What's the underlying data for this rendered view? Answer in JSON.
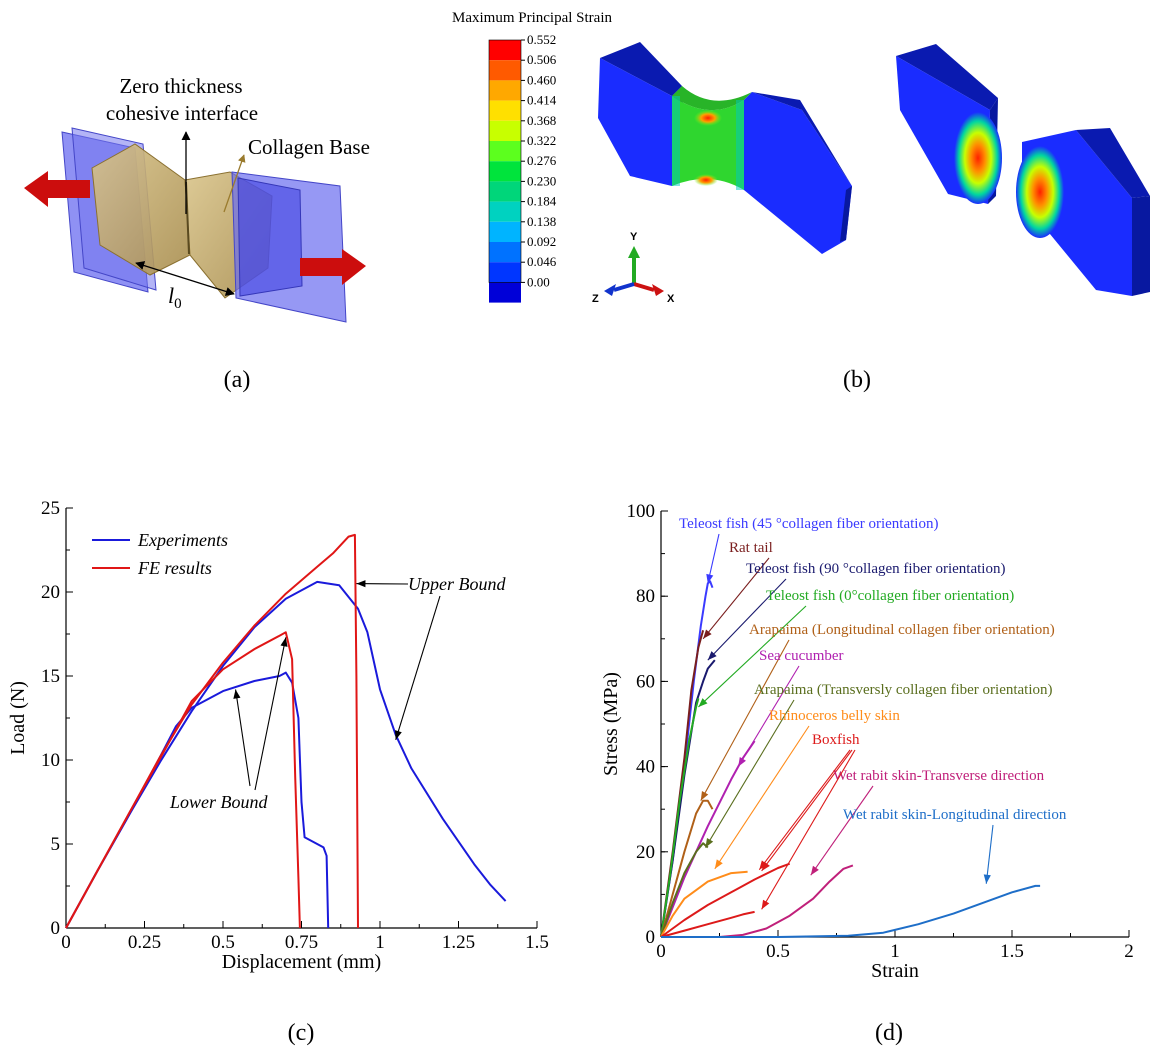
{
  "panel_a": {
    "label_interface_line1": "Zero thickness",
    "label_interface_line2": "cohesive interface",
    "label_collagen": "Collagen Base",
    "label_l0": "l",
    "label_l0_sub": "0",
    "caption": "(a)"
  },
  "panel_b": {
    "legend_title": "Maximum Principal Strain",
    "legend_values": [
      "0.552",
      "0.506",
      "0.460",
      "0.414",
      "0.368",
      "0.322",
      "0.276",
      "0.230",
      "0.184",
      "0.138",
      "0.092",
      "0.046",
      "0.00"
    ],
    "legend_colors": [
      "#ff0000",
      "#ff5a00",
      "#ffa800",
      "#ffe000",
      "#c8ff00",
      "#5cff1e",
      "#00e43c",
      "#00d67a",
      "#00d2c0",
      "#00b4ff",
      "#0072ff",
      "#0036ff",
      "#0000d8"
    ],
    "axis_y": "Y",
    "axis_z": "Z",
    "axis_x": "X",
    "caption": "(b)"
  },
  "chart_data": [
    {
      "type": "line",
      "panel": "c",
      "xlabel": "Displacement (mm)",
      "ylabel": "Load (N)",
      "xlim": [
        0,
        1.5
      ],
      "ylim": [
        0,
        25
      ],
      "xticks": [
        "0",
        "0.25",
        "0.5",
        "0.75",
        "1",
        "1.25",
        "1.5"
      ],
      "yticks": [
        "0",
        "5",
        "10",
        "15",
        "20",
        "25"
      ],
      "legend": "top-left",
      "series": [
        {
          "name": "Experiments",
          "color": "#1a1adb",
          "points": [
            [
              0,
              0
            ],
            [
              0.1,
              3.4
            ],
            [
              0.2,
              6.7
            ],
            [
              0.3,
              9.9
            ],
            [
              0.4,
              12.9
            ],
            [
              0.5,
              15.6
            ],
            [
              0.6,
              17.9
            ],
            [
              0.7,
              19.6
            ],
            [
              0.8,
              20.6
            ],
            [
              0.87,
              20.4
            ],
            [
              0.93,
              19.0
            ],
            [
              0.96,
              17.6
            ],
            [
              1.0,
              14.2
            ],
            [
              1.05,
              11.5
            ],
            [
              1.1,
              9.5
            ],
            [
              1.2,
              6.5
            ],
            [
              1.3,
              3.8
            ],
            [
              1.35,
              2.6
            ],
            [
              1.4,
              1.6
            ]
          ]
        },
        {
          "name": "Experiments",
          "color": "#1a1adb",
          "points": [
            [
              0,
              0
            ],
            [
              0.1,
              3.4
            ],
            [
              0.2,
              6.7
            ],
            [
              0.3,
              10.2
            ],
            [
              0.35,
              12.0
            ],
            [
              0.4,
              13.1
            ],
            [
              0.5,
              14.1
            ],
            [
              0.6,
              14.7
            ],
            [
              0.68,
              15.0
            ],
            [
              0.7,
              15.2
            ],
            [
              0.72,
              14.6
            ],
            [
              0.74,
              12.5
            ],
            [
              0.75,
              7.5
            ],
            [
              0.76,
              5.4
            ],
            [
              0.78,
              5.2
            ],
            [
              0.8,
              5.0
            ],
            [
              0.82,
              4.8
            ],
            [
              0.83,
              4.3
            ],
            [
              0.835,
              0
            ]
          ]
        },
        {
          "name": "FE results",
          "color": "#e01616",
          "points": [
            [
              0,
              0
            ],
            [
              0.1,
              3.4
            ],
            [
              0.2,
              6.8
            ],
            [
              0.3,
              10.2
            ],
            [
              0.4,
              13.3
            ],
            [
              0.5,
              15.8
            ],
            [
              0.6,
              18.0
            ],
            [
              0.7,
              19.9
            ],
            [
              0.8,
              21.5
            ],
            [
              0.85,
              22.3
            ],
            [
              0.9,
              23.3
            ],
            [
              0.92,
              23.4
            ],
            [
              0.925,
              15.0
            ],
            [
              0.93,
              0
            ]
          ]
        },
        {
          "name": "FE results",
          "color": "#e01616",
          "points": [
            [
              0,
              0
            ],
            [
              0.1,
              3.4
            ],
            [
              0.2,
              6.8
            ],
            [
              0.3,
              10.1
            ],
            [
              0.35,
              11.8
            ],
            [
              0.4,
              13.5
            ],
            [
              0.5,
              15.4
            ],
            [
              0.6,
              16.6
            ],
            [
              0.68,
              17.4
            ],
            [
              0.7,
              17.6
            ],
            [
              0.72,
              16.0
            ],
            [
              0.73,
              9.0
            ],
            [
              0.74,
              3.0
            ],
            [
              0.745,
              0
            ]
          ]
        }
      ],
      "annotations": [
        "Upper Bound",
        "Lower Bound"
      ],
      "caption": "(c)"
    },
    {
      "type": "line",
      "panel": "d",
      "xlabel": "Strain",
      "ylabel": "Stress (MPa)",
      "xlim": [
        0,
        2
      ],
      "ylim": [
        0,
        100
      ],
      "xticks": [
        "0",
        "0.5",
        "1",
        "1.5",
        "2"
      ],
      "yticks": [
        "0",
        "20",
        "40",
        "60",
        "80",
        "100"
      ],
      "series": [
        {
          "name": "Teleost fish (45 °collagen fiber orientation)",
          "color": "#3a3aff",
          "points": [
            [
              0,
              0
            ],
            [
              0.05,
              18
            ],
            [
              0.1,
              40
            ],
            [
              0.14,
              60
            ],
            [
              0.17,
              73
            ],
            [
              0.19,
              80
            ],
            [
              0.2,
              83
            ],
            [
              0.21,
              83.5
            ],
            [
              0.22,
              82
            ]
          ]
        },
        {
          "name": "Rat tail",
          "color": "#7a1e1e",
          "points": [
            [
              0,
              0
            ],
            [
              0.05,
              20
            ],
            [
              0.1,
              42
            ],
            [
              0.13,
              58
            ],
            [
              0.16,
              68
            ],
            [
              0.18,
              72
            ]
          ]
        },
        {
          "name": "Teleost fish (90 °collagen fiber orientation)",
          "color": "#1a1a6e",
          "points": [
            [
              0,
              0
            ],
            [
              0.05,
              18
            ],
            [
              0.1,
              38
            ],
            [
              0.15,
              55
            ],
            [
              0.18,
              60
            ],
            [
              0.2,
              63
            ],
            [
              0.23,
              65
            ]
          ]
        },
        {
          "name": "Teleost fish (0°collagen fiber orientation)",
          "color": "#22aa22",
          "points": [
            [
              0,
              0
            ],
            [
              0.04,
              15
            ],
            [
              0.08,
              32
            ],
            [
              0.12,
              46
            ],
            [
              0.15,
              54
            ],
            [
              0.16,
              56
            ]
          ]
        },
        {
          "name": "Arapaima (Longitudinal collagen fiber orientation)",
          "color": "#b06018",
          "points": [
            [
              0,
              0
            ],
            [
              0.05,
              10
            ],
            [
              0.1,
              20
            ],
            [
              0.15,
              29
            ],
            [
              0.18,
              32
            ],
            [
              0.2,
              32
            ],
            [
              0.22,
              30
            ]
          ]
        },
        {
          "name": "Sea cucumber",
          "color": "#b020b0",
          "points": [
            [
              0,
              0
            ],
            [
              0.1,
              14
            ],
            [
              0.2,
              26
            ],
            [
              0.3,
              37
            ],
            [
              0.35,
              42
            ],
            [
              0.4,
              46
            ]
          ]
        },
        {
          "name": "Arapaima (Transversly collagen fiber orientation)",
          "color": "#5a6e1e",
          "points": [
            [
              0,
              0
            ],
            [
              0.05,
              8
            ],
            [
              0.1,
              15
            ],
            [
              0.15,
              20
            ],
            [
              0.18,
              22
            ],
            [
              0.2,
              21
            ]
          ]
        },
        {
          "name": "Rhinoceros belly skin",
          "color": "#ff8c1a",
          "points": [
            [
              0,
              0
            ],
            [
              0.05,
              5
            ],
            [
              0.1,
              9
            ],
            [
              0.2,
              13
            ],
            [
              0.3,
              15
            ],
            [
              0.37,
              15.3
            ]
          ]
        },
        {
          "name": "Boxfish",
          "color": "#dd1a1a",
          "points": [
            [
              0,
              0
            ],
            [
              0.1,
              4
            ],
            [
              0.2,
              7.5
            ],
            [
              0.3,
              10.5
            ],
            [
              0.4,
              13.5
            ],
            [
              0.5,
              16.2
            ],
            [
              0.55,
              17.2
            ]
          ]
        },
        {
          "name": "Boxfish",
          "color": "#dd1a1a",
          "points": [
            [
              0,
              0
            ],
            [
              0.1,
              1.5
            ],
            [
              0.2,
              3
            ],
            [
              0.3,
              4.5
            ],
            [
              0.35,
              5.3
            ],
            [
              0.4,
              5.9
            ]
          ]
        },
        {
          "name": "Wet rabit skin-Transverse direction",
          "color": "#c0207a",
          "points": [
            [
              0.25,
              0
            ],
            [
              0.35,
              0.5
            ],
            [
              0.45,
              2
            ],
            [
              0.55,
              5
            ],
            [
              0.65,
              9
            ],
            [
              0.72,
              13
            ],
            [
              0.78,
              16
            ],
            [
              0.82,
              16.8
            ]
          ]
        },
        {
          "name": "Wet rabit skin-Longitudinal direction",
          "color": "#1e6ec8",
          "points": [
            [
              0,
              0
            ],
            [
              0.5,
              0
            ],
            [
              0.8,
              0.3
            ],
            [
              0.95,
              1
            ],
            [
              1.1,
              3
            ],
            [
              1.25,
              5.5
            ],
            [
              1.4,
              8.5
            ],
            [
              1.5,
              10.5
            ],
            [
              1.6,
              12
            ],
            [
              1.62,
              12
            ]
          ]
        }
      ],
      "caption": "(d)"
    }
  ]
}
